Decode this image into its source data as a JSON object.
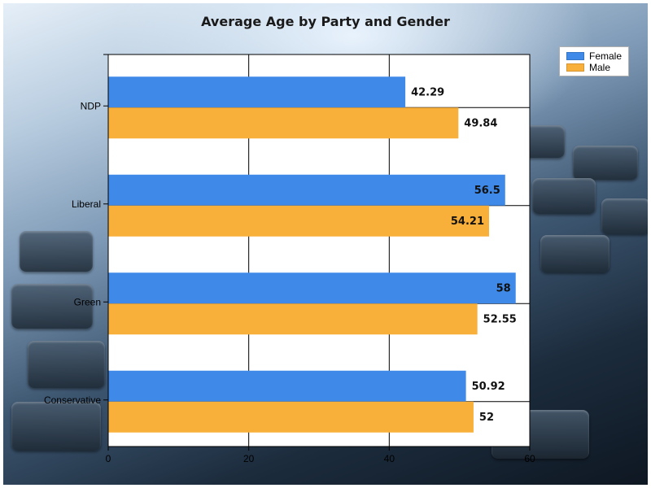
{
  "chart_data": {
    "type": "bar",
    "orientation": "horizontal",
    "title": "Average Age by Party and Gender",
    "xlabel": "",
    "ylabel": "",
    "categories": [
      "NDP",
      "Liberal",
      "Green",
      "Conservative"
    ],
    "series": [
      {
        "name": "Female",
        "color": "#3f8ae8",
        "values": [
          42.29,
          56.5,
          58,
          50.92
        ],
        "labels": [
          "42.29",
          "56.5",
          "58",
          "50.92"
        ]
      },
      {
        "name": "Male",
        "color": "#f9b03b",
        "values": [
          49.84,
          54.21,
          52.55,
          52
        ],
        "labels": [
          "49.84",
          "54.21",
          "52.55",
          "52"
        ]
      }
    ],
    "xlim": [
      0,
      60
    ],
    "xticks": [
      "0",
      "20",
      "40",
      "60"
    ],
    "grid": true,
    "legend_position": "top-right"
  }
}
